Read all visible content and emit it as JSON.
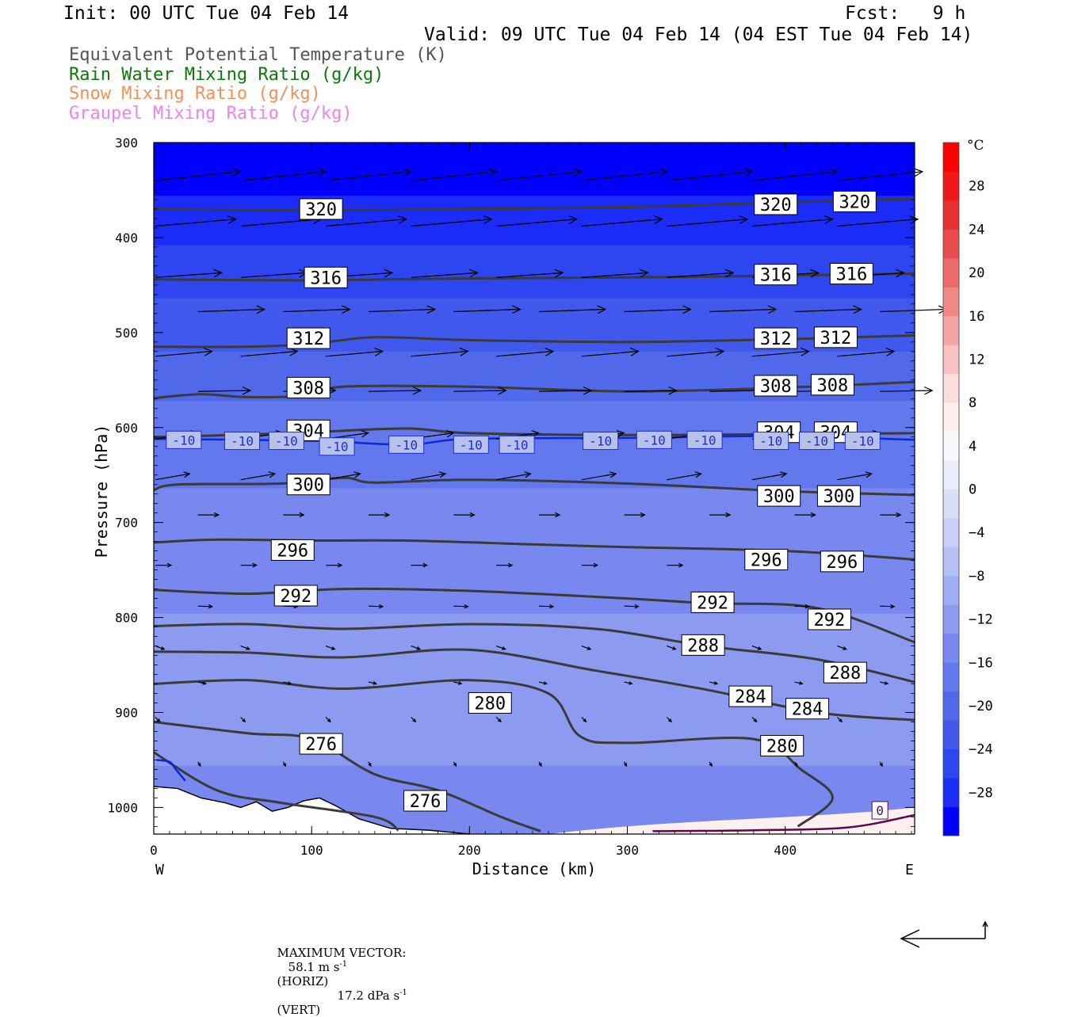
{
  "header": {
    "init": "Init: 00 UTC Tue 04 Feb 14",
    "fcst": "Fcst:   9 h",
    "valid": "Valid: 09 UTC Tue 04 Feb 14 (04 EST Tue 04 Feb 14)"
  },
  "legend": [
    {
      "label": "Equivalent Potential Temperature (K)",
      "color": "#444444"
    },
    {
      "label": "Rain Water Mixing Ratio (g/kg)",
      "color": "#0b7a0b"
    },
    {
      "label": "Snow Mixing Ratio (g/kg)",
      "color": "#f0905a"
    },
    {
      "label": "Graupel Mixing Ratio (g/kg)",
      "color": "#ee82ee"
    }
  ],
  "footer": {
    "max_vector_label": "MAXIMUM VECTOR:",
    "horiz": "58.1 m s",
    "horiz_sup": "-1",
    "horiz_tag": "(HORIZ)",
    "vert": "17.2 dPa s",
    "vert_sup": "-1",
    "vert_tag": "(VERT)"
  },
  "chart_data": {
    "type": "contour",
    "xlabel": "Distance (km)",
    "ylabel": "Pressure (hPa)",
    "xlim": [
      0,
      482
    ],
    "ylim": [
      1028,
      300
    ],
    "xticks": [
      "0",
      "100",
      "200",
      "300",
      "400"
    ],
    "yticks": [
      "300",
      "400",
      "500",
      "600",
      "700",
      "800",
      "900",
      "1000"
    ],
    "x_endpoints": {
      "left": "W",
      "right": "E"
    },
    "colorbar": {
      "unit": "°C",
      "ticks": [
        "28",
        "24",
        "20",
        "16",
        "12",
        "8",
        "4",
        "0",
        "-4",
        "-8",
        "-12",
        "-16",
        "-20",
        "-24",
        "-28"
      ],
      "range": [
        -32,
        32
      ],
      "step": 4,
      "colors_cold_to_warm": [
        "#0000ff",
        "#1a2cf5",
        "#2e46f0",
        "#4058ec",
        "#5068ea",
        "#6378ec",
        "#7888ee",
        "#8c9af0",
        "#a2aef3",
        "#b6c0f6",
        "#c8d0f8",
        "#dadff9",
        "#e8ecfb",
        "#f7f9fe",
        "#fff0f0",
        "#fcdcdc",
        "#f8c2c2",
        "#f4a4a4",
        "#f08888",
        "#ec6a6a",
        "#e84c4c",
        "#e83030",
        "#f01818",
        "#ff0000"
      ]
    },
    "theta_e_contours": [
      {
        "level": 320,
        "points": [
          [
            0,
            370
          ],
          [
            100,
            371
          ],
          [
            200,
            370
          ],
          [
            300,
            368
          ],
          [
            380,
            364
          ],
          [
            482,
            359
          ]
        ],
        "labels": [
          [
            106,
            370
          ],
          [
            394,
            365
          ],
          [
            444,
            362
          ]
        ]
      },
      {
        "level": 316,
        "points": [
          [
            0,
            444
          ],
          [
            100,
            445
          ],
          [
            200,
            443
          ],
          [
            300,
            442
          ],
          [
            400,
            440
          ],
          [
            482,
            438
          ]
        ],
        "labels": [
          [
            109,
            442
          ],
          [
            394,
            439
          ],
          [
            442,
            438
          ]
        ]
      },
      {
        "level": 312,
        "points": [
          [
            0,
            515
          ],
          [
            60,
            515
          ],
          [
            100,
            512
          ],
          [
            140,
            505
          ],
          [
            200,
            508
          ],
          [
            300,
            510
          ],
          [
            400,
            507
          ],
          [
            482,
            503
          ]
        ],
        "labels": [
          [
            98,
            506
          ],
          [
            394,
            506
          ],
          [
            432,
            505
          ]
        ]
      },
      {
        "level": 308,
        "points": [
          [
            0,
            569
          ],
          [
            30,
            565
          ],
          [
            60,
            568
          ],
          [
            100,
            566
          ],
          [
            120,
            557
          ],
          [
            200,
            557
          ],
          [
            300,
            562
          ],
          [
            400,
            558
          ],
          [
            482,
            552
          ]
        ],
        "labels": [
          [
            98,
            558
          ],
          [
            394,
            556
          ],
          [
            430,
            555
          ]
        ]
      },
      {
        "level": 304,
        "points": [
          [
            0,
            610
          ],
          [
            50,
            608
          ],
          [
            100,
            605
          ],
          [
            160,
            601
          ],
          [
            200,
            606
          ],
          [
            300,
            608
          ],
          [
            400,
            607
          ],
          [
            482,
            606
          ]
        ],
        "labels": [
          [
            98,
            603
          ],
          [
            396,
            605
          ],
          [
            432,
            605
          ]
        ]
      },
      {
        "level": 300,
        "points": [
          [
            0,
            666
          ],
          [
            15,
            660
          ],
          [
            80,
            659
          ],
          [
            120,
            653
          ],
          [
            140,
            658
          ],
          [
            200,
            655
          ],
          [
            300,
            659
          ],
          [
            400,
            667
          ],
          [
            482,
            671
          ]
        ],
        "labels": [
          [
            98,
            660
          ],
          [
            396,
            672
          ],
          [
            434,
            672
          ]
        ]
      },
      {
        "level": 296,
        "points": [
          [
            0,
            721
          ],
          [
            40,
            718
          ],
          [
            100,
            719
          ],
          [
            160,
            719
          ],
          [
            240,
            723
          ],
          [
            300,
            726
          ],
          [
            400,
            730
          ],
          [
            482,
            739
          ]
        ],
        "labels": [
          [
            88,
            729
          ],
          [
            388,
            739
          ],
          [
            436,
            741
          ]
        ]
      },
      {
        "level": 292,
        "points": [
          [
            0,
            771
          ],
          [
            60,
            775
          ],
          [
            120,
            770
          ],
          [
            200,
            772
          ],
          [
            300,
            780
          ],
          [
            350,
            785
          ],
          [
            420,
            790
          ],
          [
            482,
            826
          ]
        ],
        "labels": [
          [
            90,
            777
          ],
          [
            354,
            784
          ],
          [
            428,
            802
          ]
        ]
      },
      {
        "level": 288,
        "points": [
          [
            0,
            809
          ],
          [
            60,
            807
          ],
          [
            120,
            812
          ],
          [
            200,
            807
          ],
          [
            280,
            812
          ],
          [
            350,
            830
          ],
          [
            420,
            844
          ],
          [
            482,
            868
          ]
        ],
        "labels": [
          [
            348,
            829
          ],
          [
            438,
            858
          ]
        ]
      },
      {
        "level": 284,
        "points": [
          [
            0,
            836
          ],
          [
            60,
            837
          ],
          [
            120,
            842
          ],
          [
            200,
            834
          ],
          [
            280,
            856
          ],
          [
            350,
            876
          ],
          [
            420,
            900
          ],
          [
            482,
            908
          ]
        ],
        "labels": [
          [
            378,
            883
          ],
          [
            414,
            896
          ]
        ]
      },
      {
        "level": 280,
        "points": [
          [
            0,
            870
          ],
          [
            60,
            866
          ],
          [
            120,
            875
          ],
          [
            200,
            866
          ],
          [
            250,
            880
          ],
          [
            270,
            925
          ],
          [
            300,
            932
          ],
          [
            380,
            928
          ],
          [
            410,
            960
          ],
          [
            430,
            990
          ],
          [
            408,
            1020
          ]
        ],
        "labels": [
          [
            213,
            890
          ],
          [
            398,
            935
          ]
        ]
      },
      {
        "level": 276,
        "points": [
          [
            0,
            910
          ],
          [
            60,
            922
          ],
          [
            100,
            928
          ],
          [
            140,
            965
          ],
          [
            180,
            982
          ],
          [
            220,
            1010
          ],
          [
            245,
            1025
          ]
        ],
        "labels": [
          [
            106,
            933
          ],
          [
            172,
            993
          ]
        ]
      },
      {
        "level": 272,
        "points": [
          [
            0,
            942
          ],
          [
            40,
            982
          ],
          [
            80,
            995
          ],
          [
            140,
            1010
          ],
          [
            155,
            1024
          ]
        ],
        "labels": []
      }
    ],
    "isotherm_minus10": {
      "level": "-10",
      "points": [
        [
          0,
          612
        ],
        [
          100,
          614
        ],
        [
          160,
          618
        ],
        [
          200,
          612
        ],
        [
          300,
          611
        ],
        [
          400,
          609
        ],
        [
          482,
          613
        ]
      ],
      "labels": [
        [
          19,
          613
        ],
        [
          56,
          614
        ],
        [
          84,
          614
        ],
        [
          116,
          620
        ],
        [
          160,
          618
        ],
        [
          201,
          618
        ],
        [
          230,
          618
        ],
        [
          283,
          614
        ],
        [
          317,
          613
        ],
        [
          349,
          613
        ],
        [
          391,
          614
        ],
        [
          420,
          614
        ],
        [
          449,
          614
        ]
      ]
    },
    "rain_contour_0": {
      "level": "0",
      "points": [
        [
          316,
          1025
        ],
        [
          380,
          1024
        ],
        [
          440,
          1021
        ],
        [
          482,
          1008
        ]
      ],
      "labels": [
        [
          460,
          1003
        ]
      ]
    },
    "max_vector": {
      "horiz_m_s": 58.1,
      "vert_dPa_s": 17.2
    }
  }
}
